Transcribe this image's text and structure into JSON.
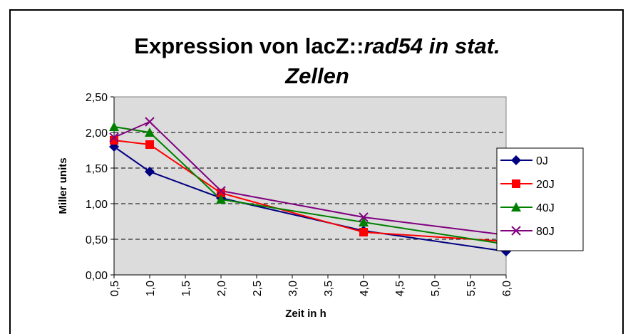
{
  "chart_data": {
    "type": "line",
    "title": [
      "Expression von lacZ::",
      "rad54 in stat.",
      "Zellen"
    ],
    "x_label": "Zeit in h",
    "y_label": "Miller units",
    "x": [
      0.5,
      1.0,
      2.0,
      4.0,
      6.0
    ],
    "series": [
      {
        "name": "0J",
        "color": "#000080",
        "marker": "diamond",
        "values": [
          1.8,
          1.45,
          1.08,
          0.62,
          0.33
        ]
      },
      {
        "name": "20J",
        "color": "#ff0000",
        "marker": "square",
        "values": [
          1.89,
          1.83,
          1.15,
          0.6,
          0.47
        ]
      },
      {
        "name": "40J",
        "color": "#008000",
        "marker": "triangle",
        "values": [
          2.08,
          2.0,
          1.06,
          0.74,
          0.43
        ]
      },
      {
        "name": "80J",
        "color": "#800080",
        "marker": "x",
        "values": [
          1.93,
          2.15,
          1.18,
          0.81,
          0.56
        ]
      }
    ],
    "xlim": [
      0.5,
      6.0
    ],
    "xticks": [
      {
        "value": 0.5,
        "label": "0,5"
      },
      {
        "value": 1.0,
        "label": "1,0"
      },
      {
        "value": 1.5,
        "label": "1,5"
      },
      {
        "value": 2.0,
        "label": "2,0"
      },
      {
        "value": 2.5,
        "label": "2,5"
      },
      {
        "value": 3.0,
        "label": "3,0"
      },
      {
        "value": 3.5,
        "label": "3,5"
      },
      {
        "value": 4.0,
        "label": "4,0"
      },
      {
        "value": 4.5,
        "label": "4,5"
      },
      {
        "value": 5.0,
        "label": "5,0"
      },
      {
        "value": 5.5,
        "label": "5,5"
      },
      {
        "value": 6.0,
        "label": "6,0"
      }
    ],
    "ylim": [
      0,
      2.5
    ],
    "yticks": [
      {
        "value": 0,
        "label": "0,00"
      },
      {
        "value": 0.5,
        "label": "0,50"
      },
      {
        "value": 1.0,
        "label": "1,00"
      },
      {
        "value": 1.5,
        "label": "1,50"
      },
      {
        "value": 2.0,
        "label": "2,00"
      },
      {
        "value": 2.5,
        "label": "2,50"
      }
    ],
    "grid": true,
    "legend": "right"
  }
}
